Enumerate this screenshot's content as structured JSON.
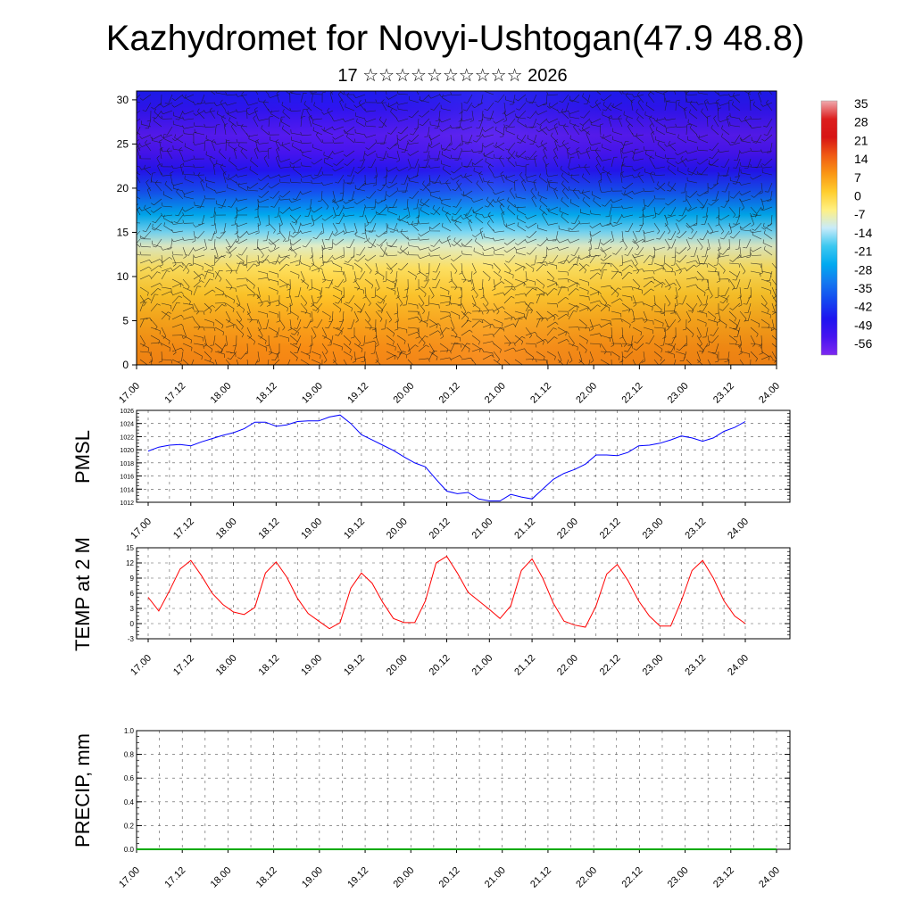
{
  "title": "Kazhydromet for Novyi-Ushtogan(47.9 48.8)",
  "subtitle": "17 ☆☆☆☆☆☆☆☆☆☆ 2026",
  "colorbar": {
    "labels": [
      "35",
      "28",
      "21",
      "14",
      "7",
      "0",
      "-7",
      "-14",
      "-21",
      "-28",
      "-35",
      "-42",
      "-49",
      "-56"
    ]
  },
  "colors": {
    "pmsl_line": "#0000ff",
    "temp_line": "#ff0000",
    "precip_line": "#00aa00"
  },
  "chart_data": [
    {
      "id": "cross-section",
      "type": "heatmap",
      "title": "",
      "xlabel": "",
      "ylabel": "",
      "categories": [
        "17.00",
        "17.12",
        "18.00",
        "18.12",
        "19.00",
        "19.12",
        "20.00",
        "20.12",
        "21.00",
        "21.12",
        "22.00",
        "22.12",
        "23.00",
        "23.12",
        "24.00"
      ],
      "ylim": [
        0,
        31
      ],
      "yticks": [
        0,
        5,
        10,
        15,
        20,
        25,
        30
      ],
      "y_tick_labels": [
        "0",
        "5",
        "10",
        "15",
        "20",
        "25",
        "30"
      ],
      "levels": [
        0,
        2,
        5,
        8,
        11,
        13.5,
        15,
        17,
        19.5,
        22,
        24,
        26,
        29,
        31
      ],
      "values_at_levels": [
        9,
        8,
        5,
        1,
        -4,
        -11,
        -18,
        -28,
        -40,
        -50,
        -56,
        -58,
        -52,
        -48
      ],
      "colorbar_ticks": [
        35,
        28,
        21,
        14,
        7,
        0,
        -7,
        -14,
        -21,
        -28,
        -35,
        -42,
        -49,
        -56
      ],
      "overlay": "wind barbs"
    },
    {
      "id": "pmsl",
      "type": "line",
      "title": "",
      "ylabel": "PMSL",
      "xlabel": "",
      "x_tick_labels": [
        "17.00",
        "17.12",
        "18.00",
        "18.12",
        "19.00",
        "19.12",
        "20.00",
        "20.12",
        "21.00",
        "21.12",
        "22.00",
        "22.12",
        "23.00",
        "23.12",
        "24.00"
      ],
      "ylim": [
        1012,
        1026
      ],
      "yticks": [
        1012,
        1014,
        1016,
        1018,
        1020,
        1022,
        1024,
        1026
      ],
      "y_tick_labels": [
        "1012",
        "1014",
        "1016",
        "1018",
        "1020",
        "1022",
        "1024",
        "1026"
      ],
      "series": [
        {
          "name": "PMSL",
          "x_hours": [
            0,
            3,
            6,
            9,
            12,
            15,
            18,
            21,
            24,
            27,
            30,
            33,
            36,
            39,
            42,
            45,
            48,
            51,
            54,
            57,
            60,
            63,
            66,
            69,
            72,
            75,
            78,
            81,
            84,
            87,
            90,
            93,
            96,
            99,
            102,
            105,
            108,
            111,
            114,
            117,
            120,
            123,
            126,
            129,
            132,
            135,
            138,
            141,
            144,
            147,
            150,
            153,
            156,
            159,
            162,
            165,
            168
          ],
          "values": [
            1019.8,
            1020.4,
            1020.7,
            1020.8,
            1020.6,
            1021.2,
            1021.7,
            1022.2,
            1022.6,
            1023.2,
            1024.2,
            1024.2,
            1023.6,
            1023.8,
            1024.3,
            1024.4,
            1024.4,
            1025.0,
            1025.3,
            1024.0,
            1022.3,
            1021.5,
            1020.7,
            1019.9,
            1018.9,
            1018.0,
            1017.4,
            1015.5,
            1013.7,
            1013.3,
            1013.5,
            1012.5,
            1012.2,
            1012.2,
            1013.2,
            1012.8,
            1012.5,
            1014.0,
            1015.5,
            1016.4,
            1017.0,
            1017.8,
            1019.2,
            1019.2,
            1019.1,
            1019.6,
            1020.6,
            1020.7,
            1021.0,
            1021.5,
            1022.1,
            1021.8,
            1021.3,
            1021.8,
            1022.8,
            1023.4,
            1024.3
          ]
        }
      ]
    },
    {
      "id": "temp",
      "type": "line",
      "title": "",
      "ylabel": "TEMP at 2 M",
      "xlabel": "",
      "x_tick_labels": [
        "17.00",
        "17.12",
        "18.00",
        "18.12",
        "19.00",
        "19.12",
        "20.00",
        "20.12",
        "21.00",
        "21.12",
        "22.00",
        "22.12",
        "23.00",
        "23.12",
        "24.00"
      ],
      "ylim": [
        -3,
        15
      ],
      "yticks": [
        -3,
        0,
        3,
        6,
        9,
        12,
        15
      ],
      "y_tick_labels": [
        "-3",
        "0",
        "3",
        "6",
        "9",
        "12",
        "15"
      ],
      "series": [
        {
          "name": "TEMP at 2 M",
          "x_hours": [
            0,
            3,
            6,
            9,
            12,
            15,
            18,
            21,
            24,
            27,
            30,
            33,
            36,
            39,
            42,
            45,
            48,
            51,
            54,
            57,
            60,
            63,
            66,
            69,
            72,
            75,
            78,
            81,
            84,
            87,
            90,
            93,
            96,
            99,
            102,
            105,
            108,
            111,
            114,
            117,
            120,
            123,
            126,
            129,
            132,
            135,
            138,
            141,
            144,
            147,
            150,
            153,
            156,
            159,
            162,
            165,
            168
          ],
          "values": [
            5.2,
            2.5,
            6.5,
            10.8,
            12.5,
            9.5,
            6.0,
            3.8,
            2.3,
            1.8,
            3.2,
            10.0,
            12.2,
            9.2,
            5.0,
            2.0,
            0.5,
            -1.0,
            0.2,
            7.0,
            10.0,
            8.0,
            4.2,
            1.0,
            0.2,
            0.2,
            4.5,
            12.0,
            13.3,
            10.0,
            6.2,
            4.5,
            2.8,
            1.0,
            3.5,
            10.5,
            12.8,
            9.0,
            4.0,
            0.5,
            -0.3,
            -0.7,
            3.5,
            9.8,
            11.7,
            8.5,
            4.5,
            1.5,
            -0.5,
            -0.5,
            4.5,
            10.5,
            12.5,
            9.0,
            4.5,
            1.5,
            0.0
          ]
        }
      ]
    },
    {
      "id": "precip",
      "type": "line",
      "title": "",
      "ylabel": "PRECIP, mm",
      "xlabel": "",
      "x_tick_labels": [
        "17.00",
        "17.12",
        "18.00",
        "18.12",
        "19.00",
        "19.12",
        "20.00",
        "20.12",
        "21.00",
        "21.12",
        "22.00",
        "22.12",
        "23.00",
        "23.12",
        "24.00"
      ],
      "ylim": [
        0.0,
        1.0
      ],
      "yticks": [
        0.0,
        0.2,
        0.4,
        0.6,
        0.8,
        1.0
      ],
      "y_tick_labels": [
        "0.0",
        "0.2",
        "0.4",
        "0.6",
        "0.8",
        "1.0"
      ],
      "series": [
        {
          "name": "PRECIP",
          "x_hours": [
            0,
            168
          ],
          "values": [
            0,
            0
          ]
        }
      ]
    }
  ]
}
